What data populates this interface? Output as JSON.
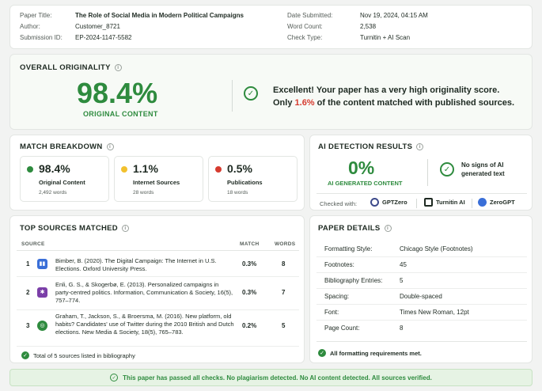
{
  "header": {
    "left": [
      {
        "key": "Paper Title:",
        "value": "The Role of Social Media in Modern Political Campaigns",
        "bold": true
      },
      {
        "key": "Author:",
        "value": "Customer_8721",
        "bold": false
      },
      {
        "key": "Submission ID:",
        "value": "EP-2024-1147-5582",
        "bold": false
      }
    ],
    "right": [
      {
        "key": "Date Submitted:",
        "value": "Nov 19, 2024, 04:15 AM"
      },
      {
        "key": "Word Count:",
        "value": "2,538"
      },
      {
        "key": "Check Type:",
        "value": "Turnitin + AI Scan"
      }
    ]
  },
  "overall": {
    "title": "OVERALL ORIGINALITY",
    "percent": "98.4%",
    "label": "ORIGINAL CONTENT",
    "message_line1": "Excellent! Your paper has a very high originality score.",
    "message_pre": "Only ",
    "message_pct": "1.6%",
    "message_post": " of the content matched with published sources.",
    "accent": "#2e8b3e"
  },
  "match": {
    "title": "MATCH BREAKDOWN",
    "items": [
      {
        "pct": "98.4%",
        "label": "Original Content",
        "count": "2,492 words",
        "color": "#2e8b3e"
      },
      {
        "pct": "1.1%",
        "label": "Internet Sources",
        "count": "28 words",
        "color": "#f2c12e"
      },
      {
        "pct": "0.5%",
        "label": "Publications",
        "count": "18 words",
        "color": "#d63b2f"
      }
    ]
  },
  "ai": {
    "title": "AI DETECTION RESULTS",
    "percent": "0%",
    "label": "AI GENERATED CONTENT",
    "message": "No signs of AI generated text",
    "checked_with": "Checked with:",
    "tools": [
      {
        "name": "GPTZero",
        "icon": "gptzero-icon",
        "color": "#3c4a8a"
      },
      {
        "name": "Turnitin AI",
        "icon": "turnitin-icon",
        "color": "#1e2a22"
      },
      {
        "name": "ZeroGPT",
        "icon": "zerogpt-icon",
        "color": "#3a6fd8"
      }
    ]
  },
  "sources": {
    "title": "TOP SOURCES MATCHED",
    "columns": {
      "source": "SOURCE",
      "match": "MATCH",
      "words": "WORDS"
    },
    "rows": [
      {
        "num": "1",
        "cite": "Bimber, B. (2020). The Digital Campaign: The Internet in U.S. Elections. Oxford University Press.",
        "match": "0.3%",
        "words": "8",
        "icon": "book-icon",
        "color": "#3a6fd8"
      },
      {
        "num": "2",
        "cite": "Enli, G. S., & Skogerbø, E. (2013). Personalized campaigns in party-centred politics. Information, Communication & Society, 16(5), 757–774.",
        "match": "0.3%",
        "words": "7",
        "icon": "network-icon",
        "color": "#7b3fa8"
      },
      {
        "num": "3",
        "cite": "Graham, T., Jackson, S., & Broersma, M. (2016). New platform, old habits? Candidates' use of Twitter during the 2010 British and Dutch elections. New Media & Society, 18(5), 765–783.",
        "match": "0.2%",
        "words": "5",
        "icon": "globe-icon",
        "color": "#2e8b3e"
      }
    ],
    "total": "Total of 5 sources listed in bibliography"
  },
  "details": {
    "title": "PAPER DETAILS",
    "rows": [
      {
        "key": "Formatting Style:",
        "value": "Chicago Style (Footnotes)"
      },
      {
        "key": "Footnotes:",
        "value": "45"
      },
      {
        "key": "Bibliography Entries:",
        "value": "5"
      },
      {
        "key": "Spacing:",
        "value": "Double-spaced"
      },
      {
        "key": "Font:",
        "value": "Times New Roman, 12pt"
      },
      {
        "key": "Page Count:",
        "value": "8"
      }
    ],
    "ok": "All formatting requirements met."
  },
  "banner": "This paper has passed all checks. No plagiarism detected. No AI content detected. All sources verified."
}
